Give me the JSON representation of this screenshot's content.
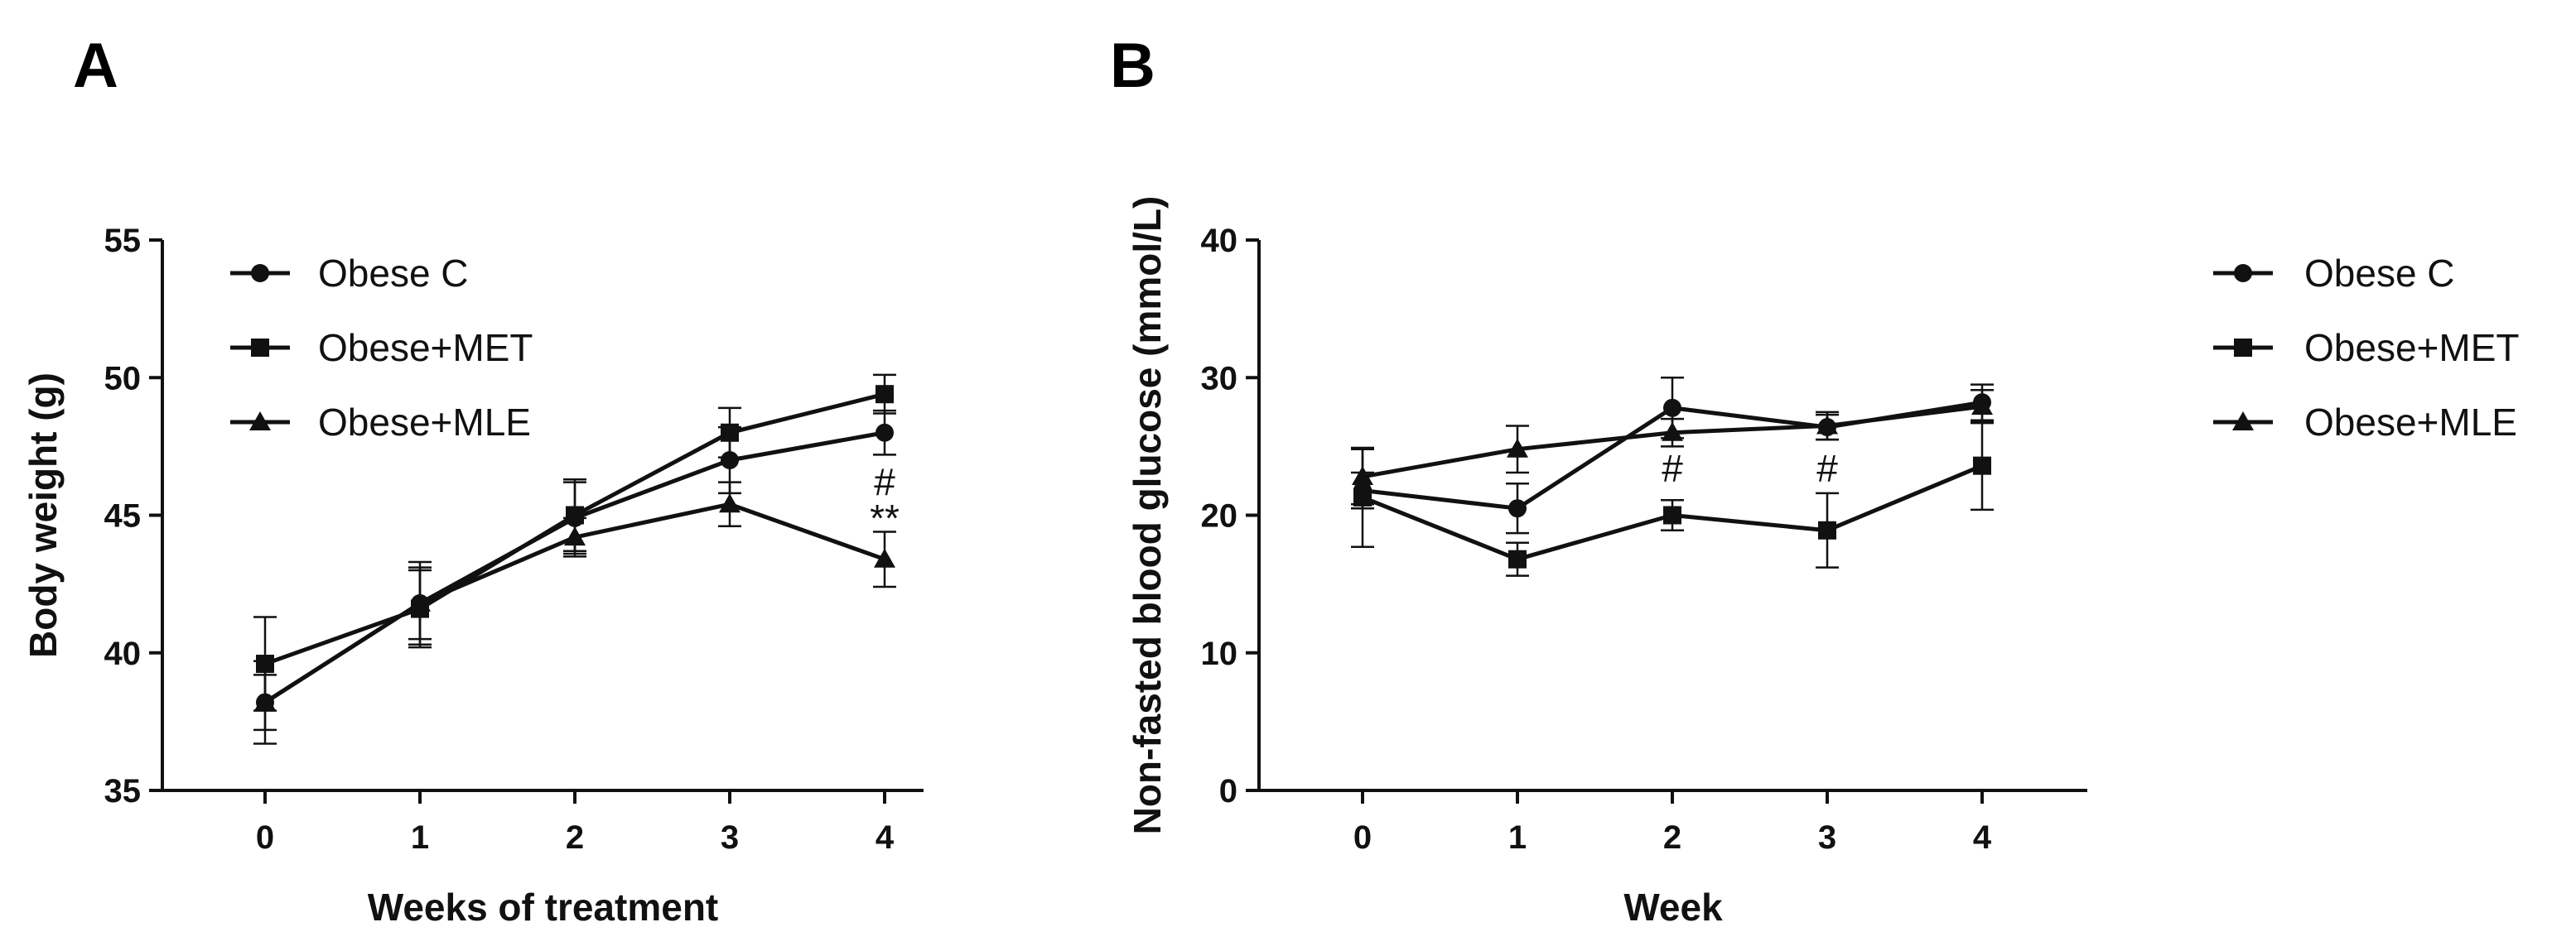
{
  "chart_data": [
    {
      "id": "A",
      "panel_label": "A",
      "type": "line",
      "xlabel": "Weeks of treatment",
      "ylabel": "Body weight (g)",
      "categories": [
        "0",
        "1",
        "2",
        "3",
        "4"
      ],
      "ylim": [
        35,
        55
      ],
      "yticks": [
        35,
        40,
        45,
        50,
        55
      ],
      "legend_position": "top-left",
      "series": [
        {
          "name": "Obese C",
          "marker": "circle",
          "values": [
            38.2,
            41.8,
            44.9,
            47.0,
            48.0
          ],
          "errors": [
            1.5,
            1.5,
            1.3,
            1.2,
            0.8
          ]
        },
        {
          "name": "Obese+MET",
          "marker": "square",
          "values": [
            39.6,
            41.6,
            45.0,
            48.0,
            49.4
          ],
          "errors": [
            1.7,
            1.4,
            1.3,
            0.9,
            0.7
          ]
        },
        {
          "name": "Obese+MLE",
          "marker": "triangle",
          "values": [
            38.2,
            41.8,
            44.2,
            45.4,
            43.4
          ],
          "errors": [
            1.0,
            1.3,
            0.7,
            0.8,
            1.0
          ]
        }
      ],
      "annotations": [
        {
          "category": "4",
          "value": 46.2,
          "text": "#"
        },
        {
          "category": "4",
          "value": 44.9,
          "text": "**"
        }
      ]
    },
    {
      "id": "B",
      "panel_label": "B",
      "type": "line",
      "xlabel": "Week",
      "ylabel": "Non-fasted blood glucose (mmol/L)",
      "categories": [
        "0",
        "1",
        "2",
        "3",
        "4"
      ],
      "ylim": [
        0,
        40
      ],
      "yticks": [
        0,
        10,
        20,
        30,
        40
      ],
      "legend_position": "right",
      "series": [
        {
          "name": "Obese C",
          "marker": "circle",
          "values": [
            21.8,
            20.5,
            27.8,
            26.4,
            28.2
          ],
          "errors": [
            1.3,
            1.8,
            2.2,
            0.9,
            1.3
          ]
        },
        {
          "name": "Obese+MET",
          "marker": "square",
          "values": [
            21.3,
            16.8,
            20.0,
            18.9,
            23.6
          ],
          "errors": [
            3.6,
            1.2,
            1.1,
            2.7,
            3.2
          ]
        },
        {
          "name": "Obese+MLE",
          "marker": "triangle",
          "values": [
            22.8,
            24.8,
            26.0,
            26.5,
            27.9
          ],
          "errors": [
            2.0,
            1.7,
            1.0,
            1.0,
            1.2
          ]
        }
      ],
      "annotations": [
        {
          "category": "2",
          "value": 23.4,
          "text": "#"
        },
        {
          "category": "3",
          "value": 23.4,
          "text": "#"
        }
      ]
    }
  ]
}
